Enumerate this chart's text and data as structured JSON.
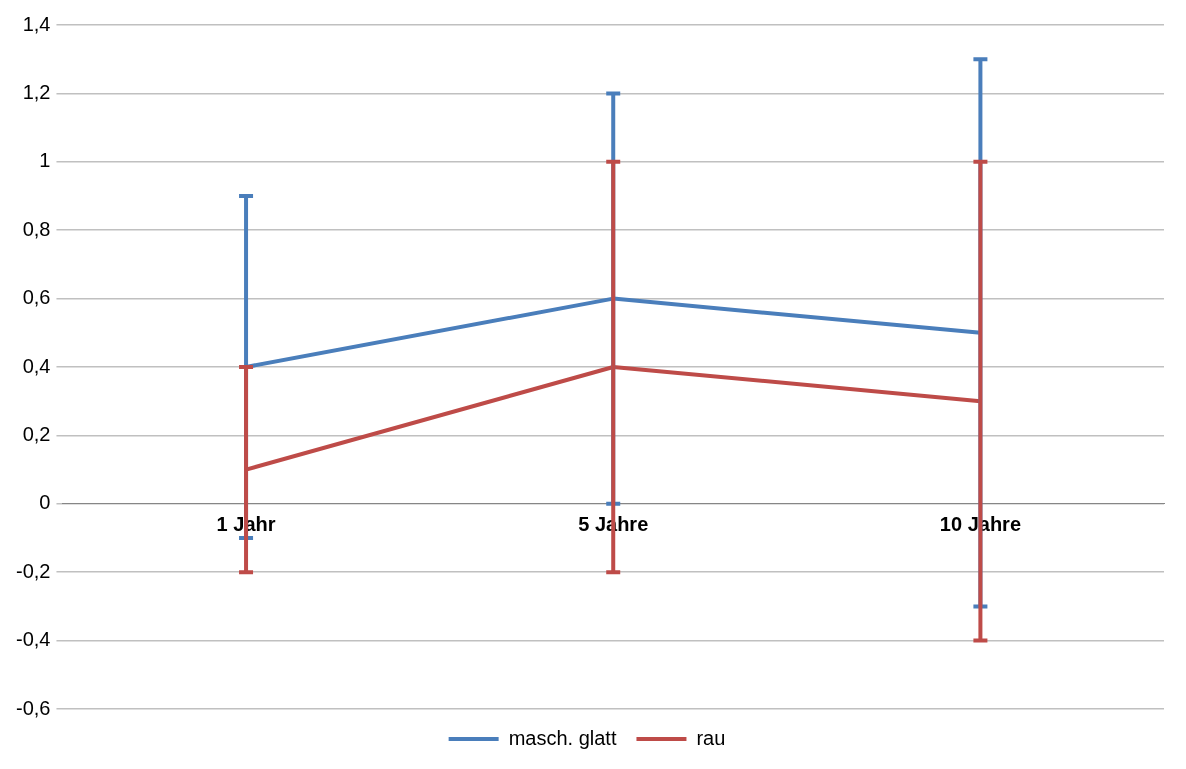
{
  "chart_data": {
    "type": "line",
    "categories": [
      "1 Jahr",
      "5 Jahre",
      "10 Jahre"
    ],
    "series": [
      {
        "name": "masch. glatt",
        "color": "#4a7ebb",
        "values": [
          0.4,
          0.6,
          0.5
        ],
        "errors": [
          0.5,
          0.6,
          0.8
        ]
      },
      {
        "name": "rau",
        "color": "#be4b48",
        "values": [
          0.1,
          0.4,
          0.3
        ],
        "errors": [
          0.3,
          0.6,
          0.7
        ]
      }
    ],
    "ylim": [
      -0.6,
      1.4
    ],
    "yticks": [
      {
        "value": -0.6,
        "label": "-0,6"
      },
      {
        "value": -0.4,
        "label": "-0,4"
      },
      {
        "value": -0.2,
        "label": "-0,2"
      },
      {
        "value": 0,
        "label": "0"
      },
      {
        "value": 0.2,
        "label": "0,2"
      },
      {
        "value": 0.4,
        "label": "0,4"
      },
      {
        "value": 0.6,
        "label": "0,6"
      },
      {
        "value": 0.8,
        "label": "0,8"
      },
      {
        "value": 1,
        "label": "1"
      },
      {
        "value": 1.2,
        "label": "1,2"
      },
      {
        "value": 1.4,
        "label": "1,4"
      }
    ],
    "grid": "y",
    "legend": "bottom",
    "marker": "none",
    "line_style": "solid"
  }
}
